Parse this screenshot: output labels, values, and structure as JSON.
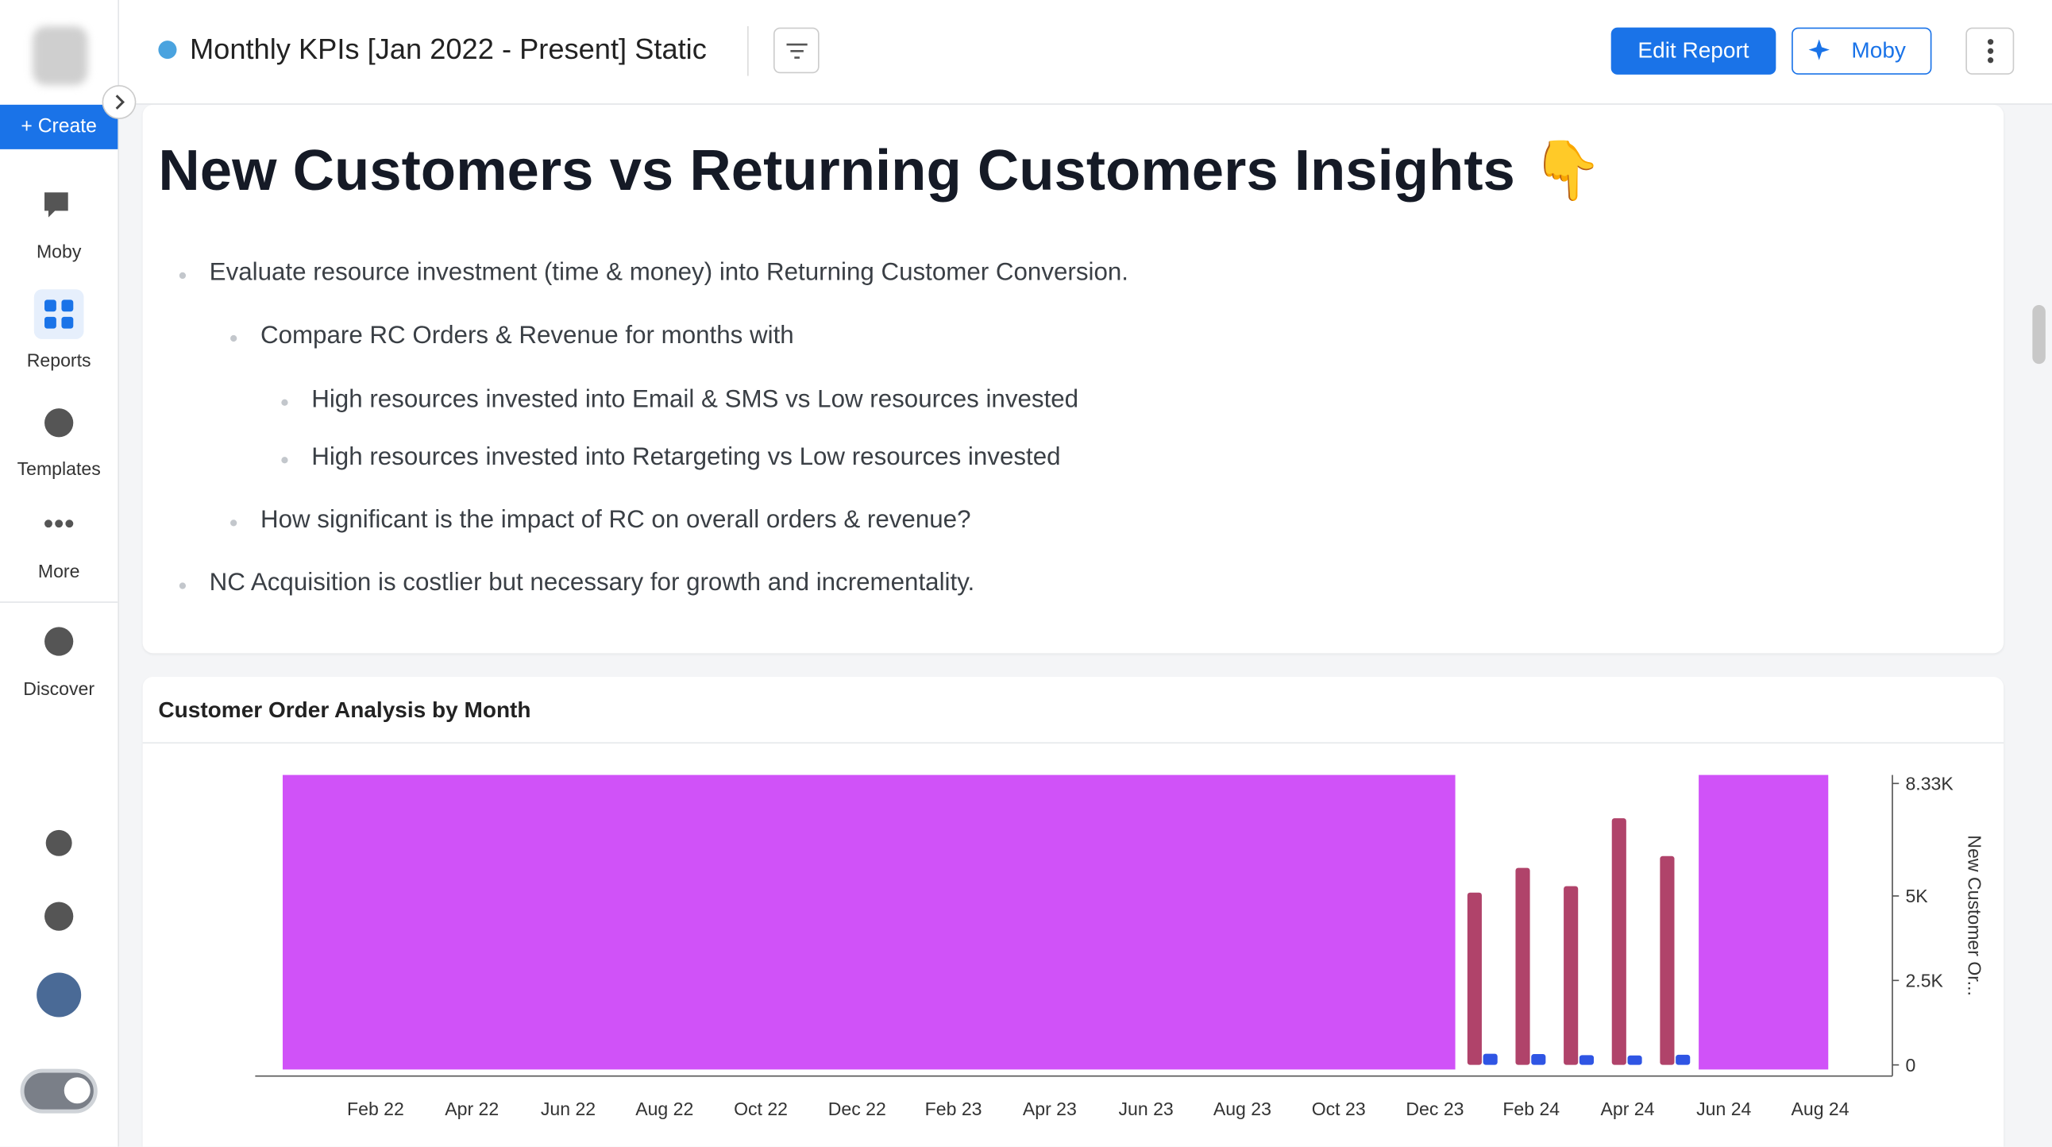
{
  "sidebar": {
    "create": "+ Create",
    "items": [
      "Moby",
      "Reports",
      "Templates",
      "More",
      "Discover"
    ]
  },
  "header": {
    "title": "Monthly KPIs [Jan 2022 - Present] Static",
    "edit_button": "Edit Report",
    "moby_button": "Moby"
  },
  "insights": {
    "heading": "New Customers vs Returning Customers Insights 👇",
    "bullets": [
      "Evaluate resource investment (time & money) into Returning Customer Conversion.",
      "Compare RC Orders & Revenue for months with",
      "High resources invested into Email & SMS vs Low resources invested",
      "High resources invested into Retargeting vs Low resources invested",
      "How significant is the impact of RC on overall orders & revenue?",
      "NC Acquisition is costlier but necessary for growth and incrementality."
    ]
  },
  "chart_card": {
    "title": "Customer Order Analysis by Month"
  },
  "chart_data": {
    "type": "bar",
    "y_label": "New Customer Or...",
    "categories": [
      null,
      null,
      "Feb 22",
      null,
      "Apr 22",
      null,
      "Jun 22",
      null,
      "Aug 22",
      null,
      "Oct 22",
      null,
      "Dec 22",
      null,
      "Feb 23",
      null,
      "Apr 23",
      null,
      "Jun 23",
      null,
      "Aug 23",
      null,
      "Oct 23",
      null,
      "Dec 23",
      null,
      "Feb 24",
      null,
      "Apr 24",
      null,
      "Jun 24",
      null,
      "Aug 24",
      null
    ],
    "series": [
      {
        "color": "#b0436a",
        "values": [
          null,
          null,
          null,
          null,
          null,
          null,
          null,
          null,
          null,
          null,
          null,
          null,
          null,
          null,
          null,
          null,
          null,
          null,
          null,
          null,
          null,
          null,
          null,
          null,
          null,
          5100,
          5830,
          5290,
          7300,
          6180,
          null,
          null,
          null,
          null
        ]
      },
      {
        "color": "#2f55e4",
        "values": [
          null,
          null,
          null,
          null,
          null,
          null,
          null,
          null,
          null,
          null,
          null,
          null,
          null,
          null,
          null,
          null,
          null,
          null,
          null,
          null,
          null,
          null,
          null,
          null,
          null,
          330,
          320,
          290,
          280,
          300,
          null,
          null,
          null,
          null
        ]
      }
    ],
    "ylim": [
      0,
      8330
    ],
    "yticks": [
      0,
      {
        "value": 2500,
        "label": "2.5K"
      },
      {
        "value": 5000,
        "label": "5K"
      },
      {
        "value": 8330,
        "label": "8.33K"
      }
    ]
  }
}
